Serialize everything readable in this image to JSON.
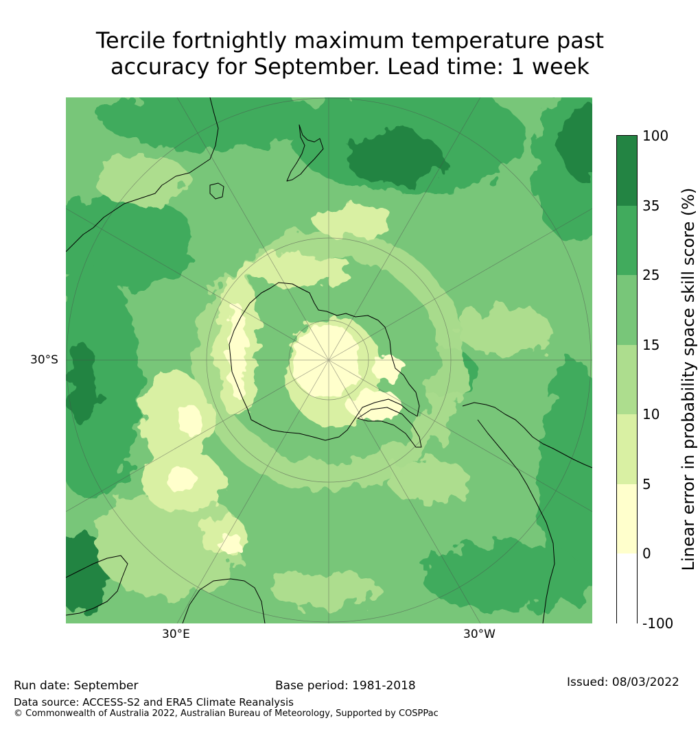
{
  "title": {
    "line1": "Tercile fortnightly maximum temperature past",
    "line2": "accuracy for September. Lead time: 1 week"
  },
  "map": {
    "projection": "south-polar-stereographic",
    "graticule_labels": {
      "lat": "30°S",
      "lon_east": "30°E",
      "lon_west": "30°W"
    }
  },
  "legend": {
    "title": "Linear error in probability space skill score (%)",
    "bins": [
      {
        "from": "-100",
        "to": "0",
        "color": "#ffffff"
      },
      {
        "from": "0",
        "to": "5",
        "color": "#ffffcc"
      },
      {
        "from": "5",
        "to": "10",
        "color": "#d9f0a3"
      },
      {
        "from": "10",
        "to": "15",
        "color": "#addd8e"
      },
      {
        "from": "15",
        "to": "25",
        "color": "#78c679"
      },
      {
        "from": "25",
        "to": "35",
        "color": "#41ab5d"
      },
      {
        "from": "35",
        "to": "100",
        "color": "#238443"
      }
    ],
    "tick_labels": [
      "100",
      "35",
      "25",
      "15",
      "10",
      "5",
      "0",
      "-100"
    ]
  },
  "footer": {
    "run_date": "Run date: September",
    "base_period": "Base period: 1981-2018",
    "issued": "Issued: 08/03/2022",
    "data_source": "Data source: ACCESS-S2 and ERA5 Climate Reanalysis",
    "copyright": "© Commonwealth of Australia 2022, Australian Bureau of Meteorology, Supported by COSPPac"
  }
}
